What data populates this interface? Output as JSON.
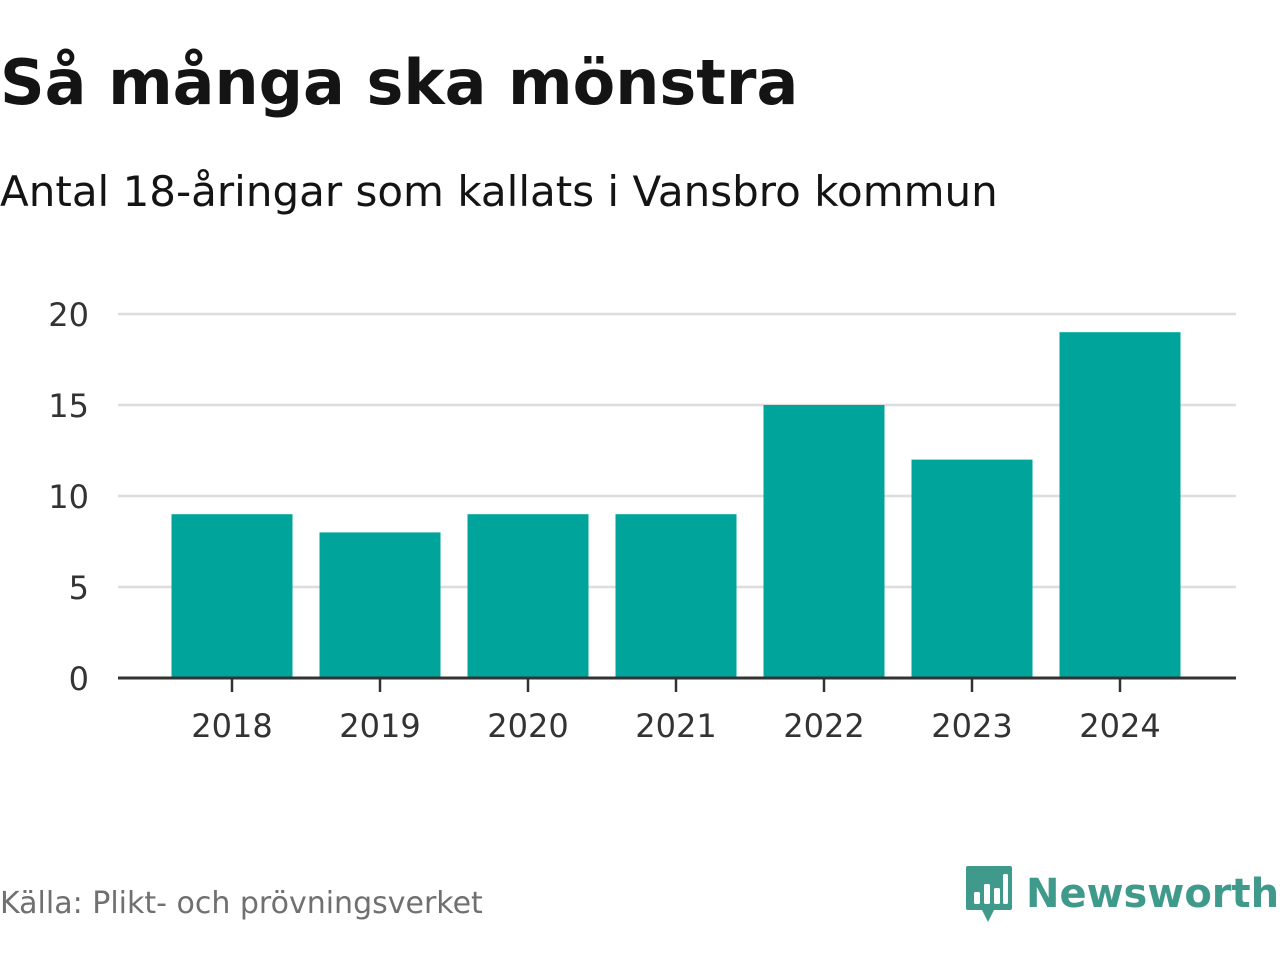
{
  "header": {
    "title": "Så många ska mönstra",
    "subtitle": "Antal 18-åringar som kallats i Vansbro kommun"
  },
  "footer": {
    "source": "Källa: Plikt- och prövningsverket",
    "brand": "Newsworthy",
    "brand_icon": "bar-chart-speech-bubble-icon"
  },
  "colors": {
    "bar": "#00a49a",
    "grid": "#dddddd",
    "axis": "#333333",
    "brand": "#3f9a8c"
  },
  "chart_data": {
    "type": "bar",
    "categories": [
      "2018",
      "2019",
      "2020",
      "2021",
      "2022",
      "2023",
      "2024"
    ],
    "values": [
      9,
      8,
      9,
      9,
      15,
      12,
      19
    ],
    "ylim": [
      0,
      20
    ],
    "yticks": [
      "0",
      "5",
      "10",
      "15",
      "20"
    ],
    "title": "Så många ska mönstra",
    "subtitle": "Antal 18-åringar som kallats i Vansbro kommun",
    "xlabel": "",
    "ylabel": "",
    "grid": true,
    "legend": "none"
  }
}
